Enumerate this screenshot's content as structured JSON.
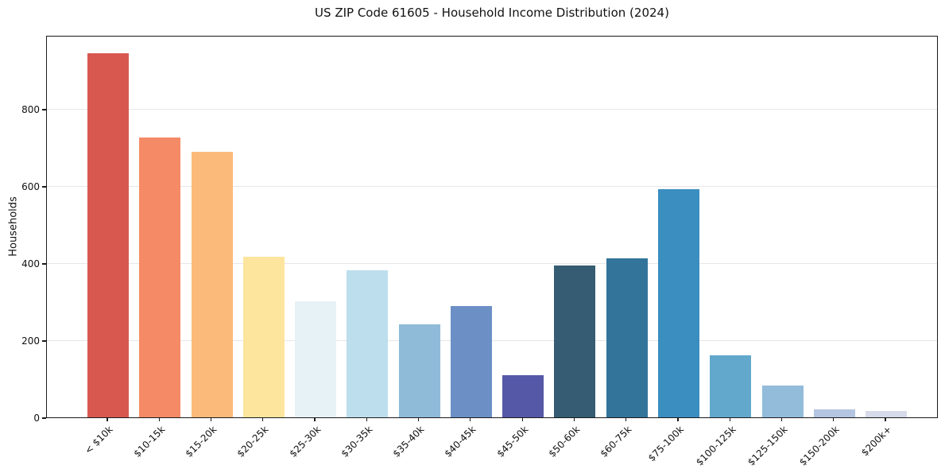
{
  "chart_data": {
    "type": "bar",
    "title": "US ZIP Code 61605 - Household Income Distribution (2024)",
    "xlabel": "",
    "ylabel": "Households",
    "categories": [
      "< $10k",
      "$10-15k",
      "$15-20k",
      "$20-25k",
      "$25-30k",
      "$30-35k",
      "$35-40k",
      "$40-45k",
      "$45-50k",
      "$50-60k",
      "$60-75k",
      "$75-100k",
      "$100-125k",
      "$125-150k",
      "$150-200k",
      "$200k+"
    ],
    "values": [
      945,
      726,
      689,
      416,
      302,
      382,
      241,
      289,
      110,
      393,
      413,
      592,
      161,
      82,
      21,
      17
    ],
    "bar_colors": [
      "#d8584f",
      "#f58a66",
      "#fcba7a",
      "#fde59e",
      "#e7f2f6",
      "#bddeed",
      "#8fbbd8",
      "#6c90c5",
      "#5558a7",
      "#355c72",
      "#32749a",
      "#3a8ec0",
      "#62a8cc",
      "#93bcdb",
      "#b3c5e1",
      "#d7dae8"
    ],
    "yticks": [
      0,
      200,
      400,
      600,
      800
    ],
    "gridline_values": [
      200,
      400,
      600,
      800
    ],
    "ylim": [
      0,
      992
    ],
    "grid": true,
    "legend": "none"
  },
  "style_colors": {
    "spine": "#1a1a1a",
    "grid": "#e7e7e7",
    "text": "#111111",
    "background": "#ffffff"
  }
}
